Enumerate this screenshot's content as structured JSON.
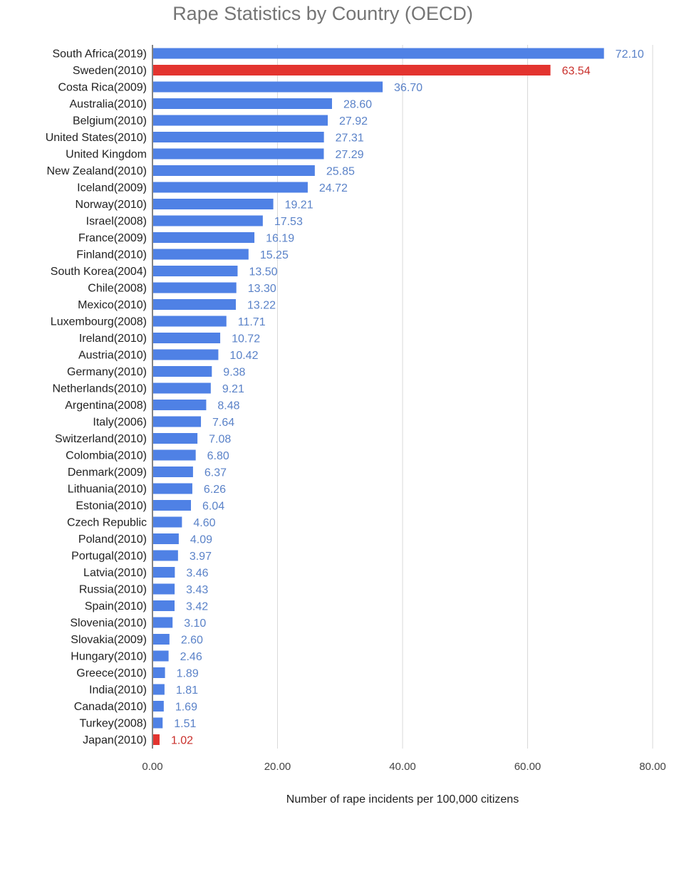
{
  "chart_data": {
    "type": "bar",
    "orientation": "horizontal",
    "title": "Rape Statistics by Country (OECD)",
    "xlabel": "Number of rape incidents per 100,000 citizens",
    "ylabel": "",
    "xlim": [
      0,
      80
    ],
    "ticks": [
      "0.00",
      "20.00",
      "40.00",
      "60.00",
      "80.00"
    ],
    "grid": true,
    "legend": "none",
    "colors": {
      "default": "#4f81e5",
      "highlight": "#e3342f",
      "default_label": "#5a82c8",
      "highlight_label": "#c9302c"
    },
    "categories": [
      "South Africa(2019)",
      "Sweden(2010)",
      "Costa Rica(2009)",
      "Australia(2010)",
      "Belgium(2010)",
      "United States(2010)",
      "United Kingdom",
      "New Zealand(2010)",
      "Iceland(2009)",
      "Norway(2010)",
      "Israel(2008)",
      "France(2009)",
      "Finland(2010)",
      "South Korea(2004)",
      "Chile(2008)",
      "Mexico(2010)",
      "Luxembourg(2008)",
      "Ireland(2010)",
      "Austria(2010)",
      "Germany(2010)",
      "Netherlands(2010)",
      "Argentina(2008)",
      "Italy(2006)",
      "Switzerland(2010)",
      "Colombia(2010)",
      "Denmark(2009)",
      "Lithuania(2010)",
      "Estonia(2010)",
      "Czech Republic",
      "Poland(2010)",
      "Portugal(2010)",
      "Latvia(2010)",
      "Russia(2010)",
      "Spain(2010)",
      "Slovenia(2010)",
      "Slovakia(2009)",
      "Hungary(2010)",
      "Greece(2010)",
      "India(2010)",
      "Canada(2010)",
      "Turkey(2008)",
      "Japan(2010)"
    ],
    "values": [
      72.1,
      63.54,
      36.7,
      28.6,
      27.92,
      27.31,
      27.29,
      25.85,
      24.72,
      19.21,
      17.53,
      16.19,
      15.25,
      13.5,
      13.3,
      13.22,
      11.71,
      10.72,
      10.42,
      9.38,
      9.21,
      8.48,
      7.64,
      7.08,
      6.8,
      6.37,
      6.26,
      6.04,
      4.6,
      4.09,
      3.97,
      3.46,
      3.43,
      3.42,
      3.1,
      2.6,
      2.46,
      1.89,
      1.81,
      1.69,
      1.51,
      1.02
    ],
    "labels": [
      "72.10",
      "63.54",
      "36.70",
      "28.60",
      "27.92",
      "27.31",
      "27.29",
      "25.85",
      "24.72",
      "19.21",
      "17.53",
      "16.19",
      "15.25",
      "13.50",
      "13.30",
      "13.22",
      "11.71",
      "10.72",
      "10.42",
      "9.38",
      "9.21",
      "8.48",
      "7.64",
      "7.08",
      "6.80",
      "6.37",
      "6.26",
      "6.04",
      "4.60",
      "4.09",
      "3.97",
      "3.46",
      "3.43",
      "3.42",
      "3.10",
      "2.60",
      "2.46",
      "1.89",
      "1.81",
      "1.69",
      "1.51",
      "1.02"
    ],
    "highlighted": [
      "Sweden(2010)",
      "Japan(2010)"
    ]
  }
}
